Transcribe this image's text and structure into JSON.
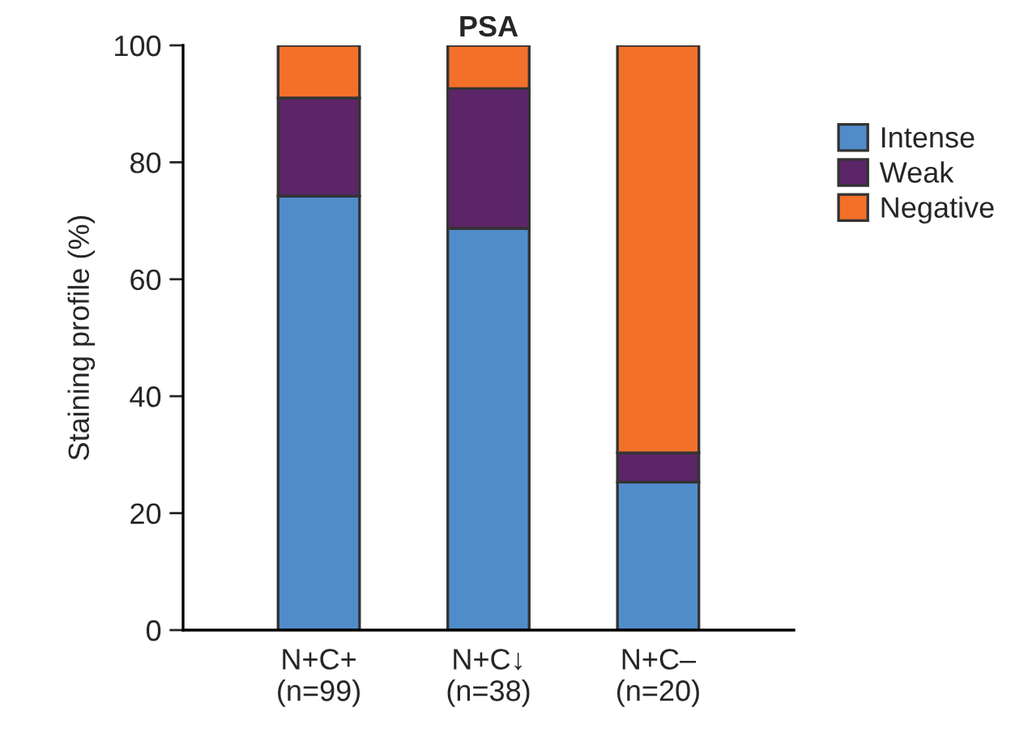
{
  "chart_data": {
    "type": "bar",
    "title": "PSA",
    "ylabel": "Staining profile (%)",
    "categories": [
      "N+C+\n(n=99)",
      "N+C↓\n(n=38)",
      "N+C–\n(n=20)"
    ],
    "stacked": true,
    "series": [
      {
        "name": "Intense",
        "color": "#518cca",
        "values": [
          74.2,
          68.7,
          25.3
        ]
      },
      {
        "name": "Weak",
        "color": "#5c2568",
        "values": [
          16.8,
          23.9,
          5.0
        ]
      },
      {
        "name": "Negative",
        "color": "#f3702b",
        "values": [
          9.0,
          7.4,
          69.7
        ]
      }
    ],
    "ylim": [
      0,
      100
    ],
    "yticks": [
      0,
      20,
      40,
      60,
      80,
      100
    ],
    "grid": false,
    "legend": "right"
  }
}
